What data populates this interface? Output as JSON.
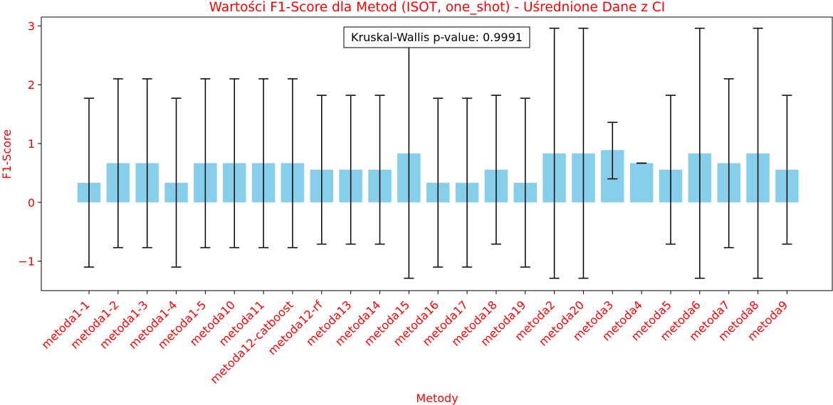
{
  "chart_data": {
    "type": "bar",
    "title": "Wartości F1-Score dla Metod (ISOT, one_shot) - Uśrednione Dane z CI",
    "xlabel": "Metody",
    "ylabel": "F1-Score",
    "ylim": [
      -1.5,
      3.15
    ],
    "yticks": [
      -1,
      0,
      1,
      2,
      3
    ],
    "ytick_labels": [
      "−1",
      "0",
      "1",
      "2",
      "3"
    ],
    "grid": false,
    "annotation": "Kruskal-Wallis p-value: 0.9991",
    "categories": [
      "metoda1-1",
      "metoda1-2",
      "metoda1-3",
      "metoda1-4",
      "metoda1-5",
      "metoda10",
      "metoda11",
      "metoda12-catboost",
      "metoda12-rf",
      "metoda13",
      "metoda14",
      "metoda15",
      "metoda16",
      "metoda17",
      "metoda18",
      "metoda19",
      "metoda2",
      "metoda20",
      "metoda3",
      "metoda4",
      "metoda5",
      "metoda6",
      "metoda7",
      "metoda8",
      "metoda9"
    ],
    "values": [
      0.333,
      0.667,
      0.667,
      0.333,
      0.667,
      0.667,
      0.667,
      0.667,
      0.556,
      0.556,
      0.556,
      0.833,
      0.333,
      0.333,
      0.556,
      0.333,
      0.833,
      0.833,
      0.889,
      0.667,
      0.556,
      0.833,
      0.667,
      0.833,
      0.556
    ],
    "ci_lower": [
      -1.1,
      -0.77,
      -0.77,
      -1.1,
      -0.77,
      -0.77,
      -0.77,
      -0.77,
      -0.71,
      -0.71,
      -0.71,
      -1.29,
      -1.1,
      -1.1,
      -0.71,
      -1.1,
      -1.29,
      -1.29,
      0.4,
      0.667,
      -0.71,
      -1.29,
      -0.77,
      -1.29,
      -0.71
    ],
    "ci_upper": [
      1.77,
      2.1,
      2.1,
      1.77,
      2.1,
      2.1,
      2.1,
      2.1,
      1.82,
      1.82,
      1.82,
      2.96,
      1.77,
      1.77,
      1.82,
      1.77,
      2.96,
      2.96,
      1.36,
      0.667,
      1.82,
      2.96,
      2.1,
      2.96,
      1.82
    ],
    "colors": {
      "bar": "#87ceeb",
      "errorbar": "#000000",
      "label_text": "#ff0000"
    }
  }
}
